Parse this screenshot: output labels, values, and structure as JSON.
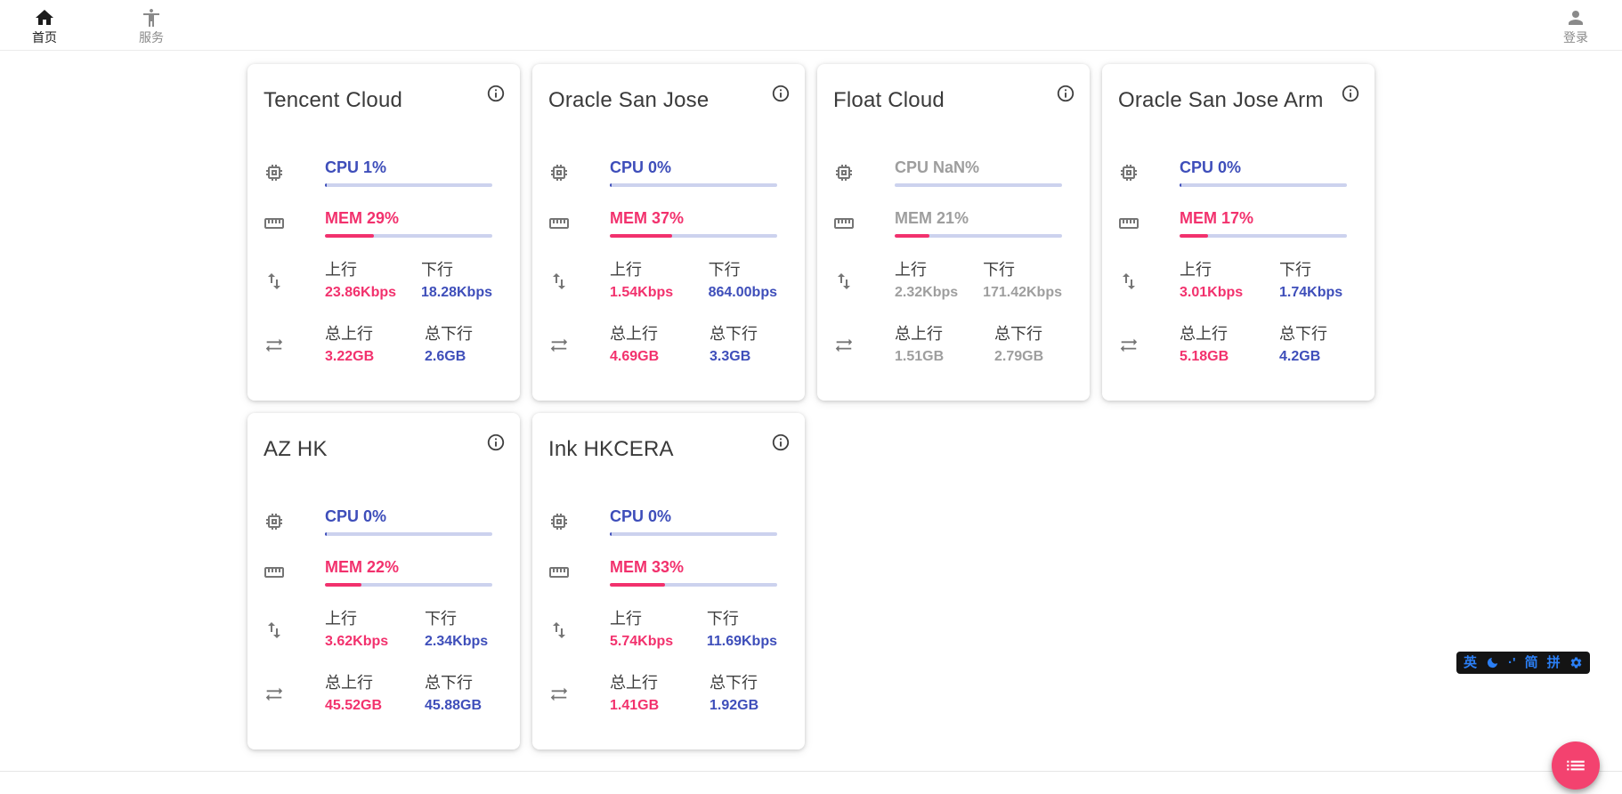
{
  "nav": {
    "home": {
      "label": "首页"
    },
    "services": {
      "label": "服务"
    },
    "login": {
      "label": "登录"
    }
  },
  "labels": {
    "up": "上行",
    "down": "下行",
    "total_up": "总上行",
    "total_down": "总下行"
  },
  "cards": [
    {
      "title": "Tencent Cloud",
      "online": true,
      "cpu": {
        "label": "CPU 1%",
        "pct": 1
      },
      "mem": {
        "label": "MEM 29%",
        "pct": 29
      },
      "net": {
        "up": "23.86Kbps",
        "down": "18.28Kbps"
      },
      "total": {
        "up": "3.22GB",
        "down": "2.6GB"
      }
    },
    {
      "title": "Oracle San Jose",
      "online": true,
      "cpu": {
        "label": "CPU 0%",
        "pct": 0
      },
      "mem": {
        "label": "MEM 37%",
        "pct": 37
      },
      "net": {
        "up": "1.54Kbps",
        "down": "864.00bps"
      },
      "total": {
        "up": "4.69GB",
        "down": "3.3GB"
      }
    },
    {
      "title": "Float Cloud",
      "online": false,
      "cpu": {
        "label": "CPU NaN%",
        "pct": null
      },
      "mem": {
        "label": "MEM 21%",
        "pct": 21
      },
      "net": {
        "up": "2.32Kbps",
        "down": "171.42Kbps"
      },
      "total": {
        "up": "1.51GB",
        "down": "2.79GB"
      }
    },
    {
      "title": "Oracle San Jose Arm",
      "online": true,
      "cpu": {
        "label": "CPU 0%",
        "pct": 0
      },
      "mem": {
        "label": "MEM 17%",
        "pct": 17
      },
      "net": {
        "up": "3.01Kbps",
        "down": "1.74Kbps"
      },
      "total": {
        "up": "5.18GB",
        "down": "4.2GB"
      }
    },
    {
      "title": "AZ HK",
      "online": true,
      "cpu": {
        "label": "CPU 0%",
        "pct": 0
      },
      "mem": {
        "label": "MEM 22%",
        "pct": 22
      },
      "net": {
        "up": "3.62Kbps",
        "down": "2.34Kbps"
      },
      "total": {
        "up": "45.52GB",
        "down": "45.88GB"
      }
    },
    {
      "title": "Ink HKCERA",
      "online": true,
      "cpu": {
        "label": "CPU 0%",
        "pct": 0
      },
      "mem": {
        "label": "MEM 33%",
        "pct": 33
      },
      "net": {
        "up": "5.74Kbps",
        "down": "11.69Kbps"
      },
      "total": {
        "up": "1.41GB",
        "down": "1.92GB"
      }
    }
  ],
  "ime_bar": {
    "en": "英",
    "moon_icon": "moon-icon",
    "punct": "·'",
    "simplified": "简",
    "pinyin": "拼",
    "gear_icon": "gear-icon"
  },
  "fab": {
    "icon": "list-icon"
  },
  "colors": {
    "accent_blue": "#3e4eba",
    "accent_pink": "#f2316d",
    "offline_gray": "#9e9e9e",
    "bar_track": "#ccd2ee",
    "fab_pink": "#f3426f",
    "ime_blue": "#2b7ff5"
  }
}
